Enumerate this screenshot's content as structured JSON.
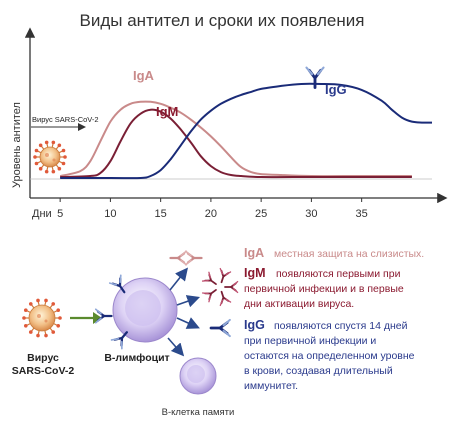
{
  "title": "Виды антител и сроки их появления",
  "y_axis_label": "Уровень антител",
  "x_axis_prefix": "Дни",
  "virus_arrow_label": "Вирус SARS-CoV-2",
  "curve_labels": {
    "iga": "IgA",
    "igm": "IgM",
    "igg": "IgG"
  },
  "chart_data": {
    "type": "line",
    "x_ticks": [
      5,
      10,
      15,
      20,
      25,
      30,
      35
    ],
    "xlabel": "Дни",
    "ylabel": "Уровень антител",
    "xlim": [
      2,
      42
    ],
    "ylim": [
      0,
      1
    ],
    "series": [
      {
        "name": "IgA",
        "color": "#c98a8a",
        "x": [
          5,
          7,
          8,
          9,
          10,
          11,
          12,
          13,
          14,
          15,
          16,
          17,
          18,
          19,
          20,
          21,
          22,
          23,
          24,
          25,
          27,
          30,
          35,
          40
        ],
        "y": [
          0.03,
          0.08,
          0.18,
          0.38,
          0.58,
          0.7,
          0.76,
          0.78,
          0.78,
          0.76,
          0.72,
          0.67,
          0.6,
          0.52,
          0.43,
          0.33,
          0.22,
          0.12,
          0.07,
          0.05,
          0.04,
          0.03,
          0.03,
          0.03
        ]
      },
      {
        "name": "IgM",
        "color": "#7a1f35",
        "x": [
          5,
          8,
          9,
          10,
          11,
          12,
          13,
          14,
          15,
          16,
          17,
          18,
          19,
          20,
          21,
          22,
          23,
          25,
          30,
          35,
          40
        ],
        "y": [
          0.02,
          0.03,
          0.06,
          0.18,
          0.38,
          0.56,
          0.66,
          0.7,
          0.68,
          0.61,
          0.5,
          0.37,
          0.23,
          0.13,
          0.07,
          0.04,
          0.03,
          0.02,
          0.02,
          0.02,
          0.02
        ]
      },
      {
        "name": "IgG",
        "color": "#1a2b78",
        "x": [
          5,
          10,
          13,
          14,
          15,
          16,
          17,
          18,
          19,
          20,
          21,
          22,
          23,
          24,
          25,
          27,
          29,
          31,
          33,
          35,
          37,
          38,
          39,
          40,
          41,
          42
        ],
        "y": [
          0.01,
          0.01,
          0.01,
          0.03,
          0.09,
          0.2,
          0.34,
          0.48,
          0.6,
          0.69,
          0.76,
          0.81,
          0.85,
          0.88,
          0.91,
          0.94,
          0.96,
          0.96,
          0.95,
          0.9,
          0.79,
          0.7,
          0.62,
          0.58,
          0.57,
          0.57
        ]
      }
    ]
  },
  "legend_items": [
    {
      "key": "IgA",
      "lines": [
        "местная защита на слизистых."
      ]
    },
    {
      "key": "IgM",
      "lines": [
        "появляются первыми при",
        "первичной инфекции и в первые",
        "дни активации вируса."
      ]
    },
    {
      "key": "IgG",
      "lines": [
        "появляются спустя 14 дней",
        "при первичной инфекции и",
        "остаются на определенном уровне",
        "в крови, создавая длительный",
        "иммунитет."
      ]
    }
  ],
  "bottom_labels": {
    "virus": [
      "Вирус",
      "SARS-CoV-2"
    ],
    "lymphocyte": "B-лимфоцит",
    "memory_cell": "B-клетка памяти"
  },
  "colors": {
    "iga": "#c98a8a",
    "igm": "#7a1f35",
    "igg": "#1a2b78",
    "iga_text": "#c98a8a",
    "igm_text": "#8b1a30",
    "igg_text": "#2a3a8c",
    "arrow": "#5a6e8a",
    "cell": "#cfc2ee",
    "virus": "#e8a86a",
    "green_arrow": "#5a8a2e"
  }
}
